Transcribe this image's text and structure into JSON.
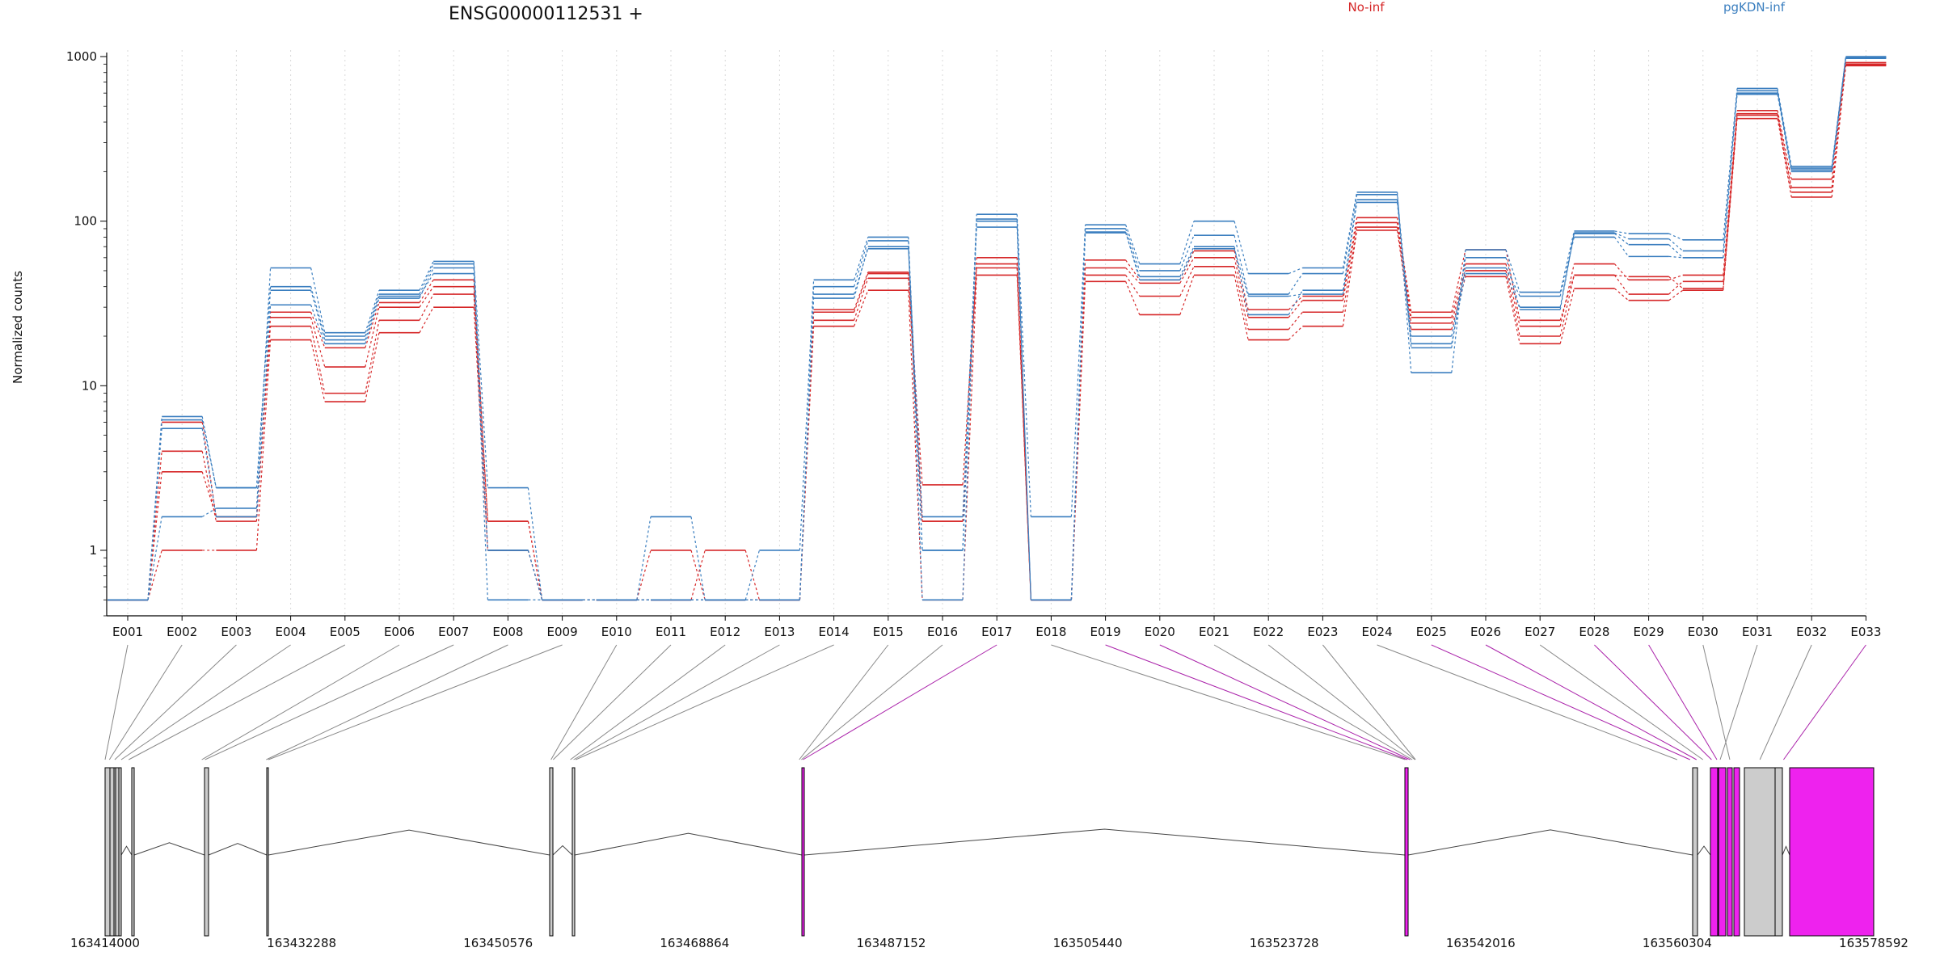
{
  "chart_data": {
    "type": "line",
    "title": "ENSG00000112531 +",
    "ylabel": "Normalized counts",
    "y_scale": "log",
    "ylim": [
      0.4,
      1000
    ],
    "y_ticks": [
      "1",
      "10",
      "100",
      "1000"
    ],
    "y_tick_values": [
      1,
      10,
      100,
      1000
    ],
    "grid": "vertical dotted",
    "categories": [
      "E001",
      "E002",
      "E003",
      "E004",
      "E005",
      "E006",
      "E007",
      "E008",
      "E009",
      "E010",
      "E011",
      "E012",
      "E013",
      "E014",
      "E015",
      "E016",
      "E017",
      "E018",
      "E019",
      "E020",
      "E021",
      "E022",
      "E023",
      "E024",
      "E025",
      "E026",
      "E027",
      "E028",
      "E029",
      "E030",
      "E031",
      "E032",
      "E033"
    ],
    "legend": [
      {
        "name": "No-inf",
        "color": "#d62728"
      },
      {
        "name": "pgKDN-inf",
        "color": "#3a7ebf"
      }
    ],
    "series": [
      {
        "group": "No-inf",
        "color": "#d62728",
        "values": [
          0.5,
          1,
          1,
          19,
          8,
          21,
          30,
          1,
          0.5,
          0.5,
          1,
          0.5,
          0.5,
          23,
          38,
          0.5,
          47,
          0.5,
          43,
          27,
          47,
          19,
          23,
          88,
          22,
          46,
          18,
          39,
          33,
          38,
          420,
          140,
          880
        ]
      },
      {
        "group": "No-inf",
        "color": "#d62728",
        "values": [
          0.5,
          4,
          1.5,
          23,
          9,
          25,
          36,
          1,
          0.5,
          0.5,
          0.5,
          1,
          0.5,
          25,
          45,
          2.5,
          52,
          0.5,
          47,
          35,
          53,
          22,
          28,
          92,
          24,
          50,
          20,
          47,
          36,
          43,
          450,
          160,
          900
        ]
      },
      {
        "group": "No-inf",
        "color": "#d62728",
        "values": [
          0.5,
          6,
          1.6,
          26,
          13,
          30,
          40,
          1.5,
          0.5,
          0.5,
          0.5,
          0.5,
          0.5,
          28,
          48,
          1.5,
          55,
          0.5,
          52,
          42,
          60,
          26,
          33,
          98,
          26,
          55,
          23,
          55,
          44,
          47,
          470,
          180,
          920
        ]
      },
      {
        "group": "No-inf",
        "color": "#d62728",
        "values": [
          0.5,
          3,
          1.6,
          28,
          17,
          32,
          44,
          1.5,
          0.5,
          0.5,
          0.5,
          0.5,
          0.5,
          29,
          49,
          1.5,
          60,
          0.5,
          58,
          44,
          66,
          29,
          35,
          105,
          28,
          67,
          25,
          47,
          46,
          39,
          440,
          150,
          890
        ]
      },
      {
        "group": "pgKDN-inf",
        "color": "#3a7ebf",
        "values": [
          0.5,
          1.6,
          1.8,
          52,
          21,
          38,
          57,
          2.4,
          0.5,
          0.5,
          1.6,
          0.5,
          1,
          44,
          80,
          1,
          110,
          1.6,
          95,
          55,
          100,
          48,
          52,
          150,
          12,
          67,
          37,
          87,
          84,
          77,
          640,
          215,
          1000
        ]
      },
      {
        "group": "pgKDN-inf",
        "color": "#3a7ebf",
        "values": [
          0.5,
          6.5,
          2.4,
          40,
          20,
          36,
          55,
          1,
          0.5,
          0.5,
          0.5,
          0.5,
          0.5,
          40,
          76,
          0.5,
          103,
          0.5,
          90,
          50,
          82,
          36,
          48,
          145,
          17,
          60,
          29,
          85,
          78,
          66,
          620,
          205,
          990
        ]
      },
      {
        "group": "pgKDN-inf",
        "color": "#3a7ebf",
        "values": [
          0.5,
          5.5,
          1.6,
          31,
          18,
          34,
          52,
          0.5,
          0.5,
          0.5,
          0.5,
          0.5,
          0.5,
          36,
          68,
          1.6,
          92,
          0.5,
          85,
          46,
          70,
          27,
          38,
          135,
          20,
          52,
          35,
          80,
          61,
          60,
          590,
          200,
          975
        ]
      },
      {
        "group": "pgKDN-inf",
        "color": "#3a7ebf",
        "values": [
          0.5,
          6.2,
          2.4,
          38,
          19,
          35,
          48,
          1,
          0.5,
          0.5,
          0.5,
          0.5,
          0.5,
          34,
          70,
          1,
          100,
          0.5,
          86,
          44,
          68,
          35,
          36,
          130,
          18,
          48,
          30,
          84,
          72,
          60,
          600,
          210,
          985
        ]
      }
    ],
    "gene_model": {
      "genomic_ticks": [
        "163414000",
        "163432288",
        "163450576",
        "163468864",
        "163487152",
        "163505440",
        "163523728",
        "163542016",
        "163560304",
        "163578592"
      ],
      "genomic_tick_values": [
        163414000,
        163432288,
        163450576,
        163468864,
        163487152,
        163505440,
        163523728,
        163542016,
        163560304,
        163578592
      ],
      "highlight_color": "#ee22ee",
      "exon_fill": "#cccccc",
      "highlighted_exons": [
        "E017",
        "E019",
        "E020",
        "E025",
        "E026",
        "E028",
        "E029",
        "E033"
      ],
      "exon_start_positions": [
        163414000,
        163414400,
        163414900,
        163415500,
        163416200,
        163423000,
        163423300,
        163429000,
        163429200,
        163455500,
        163455700,
        163457300,
        163457600,
        163457800,
        163478600,
        163478800,
        163478950,
        163535000,
        163535200,
        163535450,
        163535650,
        163535900,
        163535950,
        163560300,
        163561500,
        163562100,
        163562700,
        163563500,
        163564000,
        163565200,
        163564300,
        163568000,
        163570200
      ]
    }
  }
}
